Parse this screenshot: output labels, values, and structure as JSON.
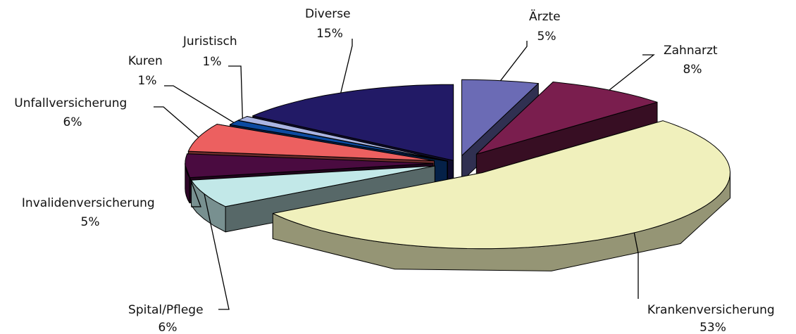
{
  "chart_data": {
    "type": "pie",
    "style": "3d-exploded",
    "title": "",
    "slices": [
      {
        "label": "Ärzte",
        "value": 5,
        "value_label": "5%",
        "color": "#6b6bb5"
      },
      {
        "label": "Zahnarzt",
        "value": 8,
        "value_label": "8%",
        "color": "#7a1e4e"
      },
      {
        "label": "Krankenversicherung",
        "value": 53,
        "value_label": "53%",
        "color": "#f0f0bc"
      },
      {
        "label": "Spital/Pflege",
        "value": 6,
        "value_label": "6%",
        "color": "#c2e8e8"
      },
      {
        "label": "Invalidenversicherung",
        "value": 5,
        "value_label": "5%",
        "color": "#4a0b40"
      },
      {
        "label": "Unfallversicherung",
        "value": 6,
        "value_label": "6%",
        "color": "#ec6060"
      },
      {
        "label": "Kuren",
        "value": 1,
        "value_label": "1%",
        "color": "#0c4aa0"
      },
      {
        "label": "Juristisch",
        "value": 1,
        "value_label": "1%",
        "color": "#aab4e2"
      },
      {
        "label": "Diverse",
        "value": 15,
        "value_label": "15%",
        "color": "#221a66"
      }
    ]
  }
}
